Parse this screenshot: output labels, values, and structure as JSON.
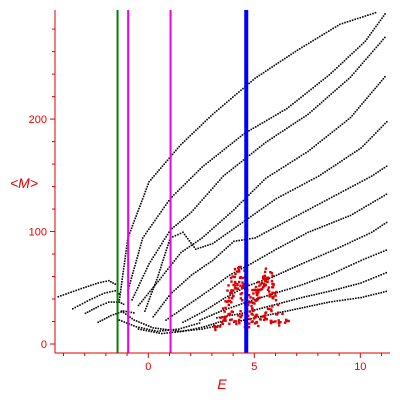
{
  "chart_data": {
    "type": "scatter",
    "xlabel": "E",
    "ylabel": "<M>",
    "xlim": [
      -4.4,
      11.4
    ],
    "ylim": [
      -8,
      297
    ],
    "x_ticks": [
      0,
      5,
      10
    ],
    "y_ticks": [
      0,
      100,
      200
    ],
    "grid": false,
    "axis_color": "#e00000",
    "vertical_lines": [
      {
        "x": -1.45,
        "color": "#008000",
        "width": 2
      },
      {
        "x": -0.95,
        "color": "#ee00ee",
        "width": 2
      },
      {
        "x": 1.05,
        "color": "#ee00ee",
        "width": 2
      },
      {
        "x": 4.62,
        "color": "#0000ff",
        "width": 4
      }
    ],
    "series": [
      {
        "color": "#000000",
        "description": "black dotted branches",
        "segments": [
          {
            "x": [
              -4.4,
              -3.2,
              -2.4,
              -1.9,
              -1.5
            ],
            "y": [
              42,
              50,
              55,
              57,
              53
            ]
          },
          {
            "x": [
              -3.6,
              -2.8,
              -2.1,
              -1.6,
              -1.3
            ],
            "y": [
              32,
              40,
              46,
              48,
              44
            ]
          },
          {
            "x": [
              -3.0,
              -2.4,
              -1.9,
              -1.4,
              -1.1
            ],
            "y": [
              28,
              34,
              38,
              38,
              35
            ]
          },
          {
            "x": [
              -2.4,
              -1.8,
              -1.2,
              -0.6
            ],
            "y": [
              20,
              26,
              30,
              28
            ]
          },
          {
            "x": [
              -1.3,
              -0.7,
              0.2,
              1.5,
              2.5,
              3.5
            ],
            "y": [
              30,
              22,
              15,
              12,
              14,
              18
            ]
          },
          {
            "x": [
              -1.4,
              -0.6,
              0.4,
              1.4,
              2.5
            ],
            "y": [
              22,
              16,
              12,
              14,
              20
            ]
          },
          {
            "x": [
              -0.5,
              0.6,
              1.6,
              2.6,
              3.6
            ],
            "y": [
              14,
              10,
              12,
              16,
              22
            ]
          },
          {
            "x": [
              -1.4,
              -1.0,
              0.0,
              1.5,
              3.0,
              5.0,
              7.0,
              9.0,
              10.8
            ],
            "y": [
              40,
              95,
              145,
              178,
              205,
              237,
              262,
              285,
              296
            ]
          },
          {
            "x": [
              -1.0,
              -0.3,
              1.0,
              2.5,
              4.5,
              6.5,
              8.5,
              10.2,
              11.2
            ],
            "y": [
              48,
              95,
              130,
              158,
              188,
              210,
              240,
              270,
              296
            ]
          },
          {
            "x": [
              -0.8,
              0.0,
              1.0,
              2.0,
              3.5,
              5.5,
              7.5,
              9.5,
              11.2
            ],
            "y": [
              40,
              72,
              102,
              118,
              150,
              180,
              205,
              238,
              275
            ]
          },
          {
            "x": [
              -0.5,
              0.5,
              1.5,
              2.5,
              4.0,
              5.5,
              7.5,
              9.5,
              11.2
            ],
            "y": [
              35,
              58,
              82,
              95,
              120,
              148,
              172,
              202,
              240
            ]
          },
          {
            "x": [
              -0.2,
              0.4,
              1.0,
              1.6,
              2.2,
              3.0,
              4.5,
              6.0,
              8.0,
              10.0,
              11.3
            ],
            "y": [
              30,
              60,
              95,
              100,
              85,
              90,
              110,
              130,
              150,
              175,
              200
            ]
          },
          {
            "x": [
              0.2,
              1.0,
              2.0,
              3.0,
              4.0,
              5.0,
              6.5,
              8.5,
              10.5,
              11.3
            ],
            "y": [
              25,
              45,
              62,
              75,
              92,
              95,
              110,
              130,
              150,
              160
            ]
          },
          {
            "x": [
              0.8,
              1.8,
              2.8,
              3.8,
              4.8,
              6.0,
              7.5,
              9.5,
              11.3
            ],
            "y": [
              22,
              35,
              48,
              62,
              72,
              85,
              100,
              115,
              135
            ]
          },
          {
            "x": [
              1.6,
              2.6,
              3.6,
              4.6,
              5.8,
              7.2,
              8.8,
              10.5,
              11.3
            ],
            "y": [
              20,
              30,
              42,
              52,
              60,
              72,
              85,
              100,
              110
            ]
          },
          {
            "x": [
              2.4,
              3.4,
              4.6,
              5.8,
              7.0,
              8.5,
              10.0,
              11.3
            ],
            "y": [
              22,
              30,
              38,
              45,
              52,
              62,
              75,
              85
            ]
          },
          {
            "x": [
              3.2,
              4.4,
              5.8,
              7.2,
              8.6,
              10.0,
              11.3
            ],
            "y": [
              24,
              28,
              35,
              42,
              48,
              55,
              65
            ]
          },
          {
            "x": [
              4.0,
              5.5,
              7.0,
              8.5,
              10.0,
              11.3
            ],
            "y": [
              20,
              26,
              32,
              38,
              42,
              48
            ]
          }
        ]
      },
      {
        "color": "#e00000",
        "description": "red cluster",
        "segments": [
          {
            "x": [
              3.0,
              3.4,
              3.8,
              4.2,
              4.6,
              5.0,
              5.4,
              5.8,
              6.2,
              6.6
            ],
            "y": [
              16,
              20,
              22,
              20,
              18,
              19,
              21,
              22,
              20,
              24
            ]
          },
          {
            "x": [
              3.4,
              3.8,
              4.2,
              4.6,
              5.0,
              5.4,
              5.8,
              6.2
            ],
            "y": [
              24,
              30,
              28,
              26,
              25,
              28,
              30,
              26
            ]
          },
          {
            "x": [
              3.6,
              3.9,
              4.2,
              4.5,
              4.8,
              5.1,
              5.4,
              5.7,
              6.0
            ],
            "y": [
              35,
              45,
              55,
              40,
              32,
              48,
              60,
              45,
              35
            ]
          },
          {
            "x": [
              3.7,
              4.0,
              4.3,
              4.6,
              5.0,
              5.3,
              5.6,
              5.9
            ],
            "y": [
              40,
              62,
              68,
              50,
              38,
              55,
              65,
              42
            ]
          }
        ]
      }
    ]
  }
}
